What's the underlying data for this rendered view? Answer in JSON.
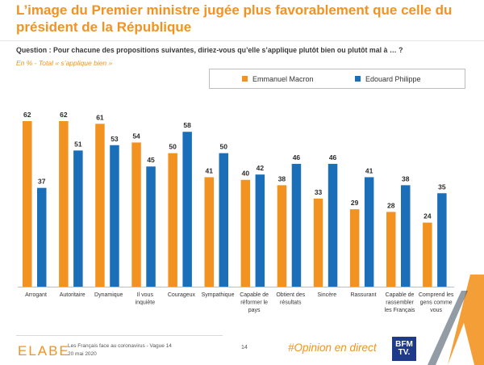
{
  "title": "L’image du Premier ministre jugée plus favorablement que celle du président de la République",
  "question": "Question : Pour chacune des propositions suivantes, diriez-vous qu’elle s’applique plutôt bien ou plutôt mal à … ?",
  "subquestion": "En  % - Total « s’applique bien »",
  "colors": {
    "macron": "#F29321",
    "philippe": "#1B6FB8",
    "title": "#F29321"
  },
  "chart_data": {
    "type": "bar",
    "title": "",
    "xlabel": "",
    "ylabel": "",
    "ylim": [
      0,
      62
    ],
    "categories": [
      "Arrogant",
      "Autoritaire",
      "Dynamique",
      "Il vous inquiète",
      "Courageux",
      "Sympathique",
      "Capable de réformer le pays",
      "Obtient des résultats",
      "Sincère",
      "Rassurant",
      "Capable de rassembler les Français",
      "Comprend les gens comme vous"
    ],
    "category_lines": [
      [
        "Arrogant"
      ],
      [
        "Autoritaire"
      ],
      [
        "Dynamique"
      ],
      [
        "Il vous",
        "inquiète"
      ],
      [
        "Courageux"
      ],
      [
        "Sympathique"
      ],
      [
        "Capable de",
        "réformer le",
        "pays"
      ],
      [
        "Obtient des",
        "résultats"
      ],
      [
        "Sincère"
      ],
      [
        "Rassurant"
      ],
      [
        "Capable de",
        "rassembler",
        "les Français"
      ],
      [
        "Comprend les",
        "gens comme",
        "vous"
      ]
    ],
    "series": [
      {
        "name": "Emmanuel Macron",
        "values": [
          62,
          62,
          61,
          54,
          50,
          41,
          40,
          38,
          33,
          29,
          28,
          24
        ]
      },
      {
        "name": "Edouard Philippe",
        "values": [
          37,
          51,
          53,
          45,
          58,
          50,
          42,
          46,
          46,
          41,
          38,
          35
        ]
      }
    ],
    "legend": "top-right"
  },
  "footer": {
    "logo": "ELABE",
    "source_line1": "Les Français face au coronavirus - Vague 14",
    "source_line2": "20 mai 2020",
    "page_number": "14",
    "hashtag": "#Opinion en direct",
    "bfm_logo": "BFM TV."
  }
}
